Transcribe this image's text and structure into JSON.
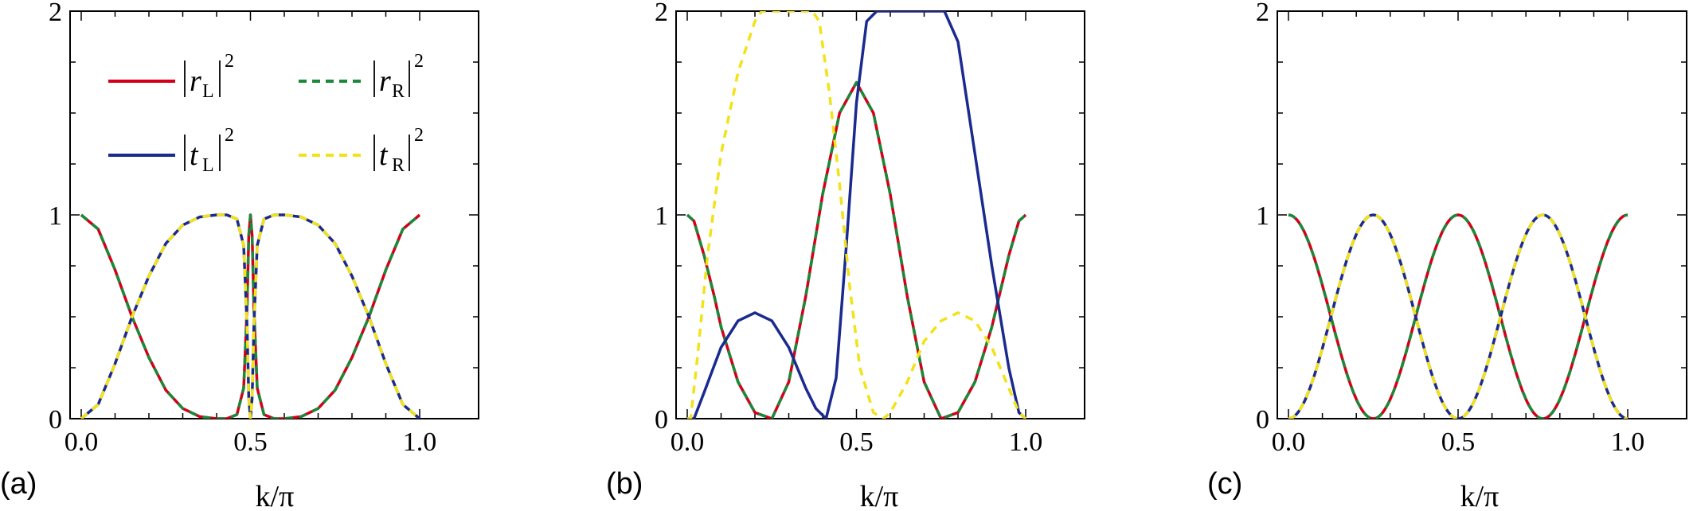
{
  "chart_data": [
    {
      "type": "line",
      "panel_label": "(a)",
      "xlabel": "k/π",
      "xlim": [
        0,
        1
      ],
      "ylim": [
        0,
        2
      ],
      "xticks": [
        "0.0",
        "0.5",
        "1.0"
      ],
      "yticks": [
        "0",
        "1",
        "2"
      ],
      "legend": [
        {
          "name": "|r_L|²",
          "base": "r",
          "sub": "L",
          "color": "#d4001a",
          "dash": "solid"
        },
        {
          "name": "|r_R|²",
          "base": "r",
          "sub": "R",
          "color": "#1a8a3a",
          "dash": "dashed"
        },
        {
          "name": "|t_L|²",
          "base": "t",
          "sub": "L",
          "color": "#1b2a8f",
          "dash": "solid"
        },
        {
          "name": "|t_R|²",
          "base": "t",
          "sub": "R",
          "color": "#f2e21a",
          "dash": "dashed"
        }
      ],
      "legend_position": "top-left",
      "series": [
        {
          "name": "|r_L|²",
          "color": "#d4001a",
          "dash": "solid",
          "x": [
            0.0,
            0.05,
            0.1,
            0.15,
            0.2,
            0.25,
            0.3,
            0.35,
            0.4,
            0.43,
            0.46,
            0.48,
            0.49,
            0.495,
            0.5,
            0.505,
            0.51,
            0.52,
            0.54,
            0.57,
            0.6,
            0.65,
            0.7,
            0.75,
            0.8,
            0.85,
            0.9,
            0.95,
            1.0
          ],
          "y": [
            1.0,
            0.93,
            0.73,
            0.5,
            0.3,
            0.14,
            0.05,
            0.01,
            0.0,
            0.0,
            0.02,
            0.15,
            0.55,
            0.9,
            1.0,
            0.9,
            0.55,
            0.15,
            0.02,
            0.0,
            0.0,
            0.01,
            0.05,
            0.14,
            0.3,
            0.5,
            0.73,
            0.93,
            1.0
          ]
        },
        {
          "name": "|r_R|²",
          "color": "#1a8a3a",
          "dash": "dashed",
          "x": [
            0.0,
            0.05,
            0.1,
            0.15,
            0.2,
            0.25,
            0.3,
            0.35,
            0.4,
            0.43,
            0.46,
            0.48,
            0.49,
            0.495,
            0.5,
            0.505,
            0.51,
            0.52,
            0.54,
            0.57,
            0.6,
            0.65,
            0.7,
            0.75,
            0.8,
            0.85,
            0.9,
            0.95,
            1.0
          ],
          "y": [
            1.0,
            0.93,
            0.73,
            0.5,
            0.3,
            0.14,
            0.05,
            0.01,
            0.0,
            0.0,
            0.02,
            0.15,
            0.55,
            0.9,
            1.0,
            0.9,
            0.55,
            0.15,
            0.02,
            0.0,
            0.0,
            0.01,
            0.05,
            0.14,
            0.3,
            0.5,
            0.73,
            0.93,
            1.0
          ]
        },
        {
          "name": "|t_L|²",
          "color": "#1b2a8f",
          "dash": "solid",
          "x": [
            0.0,
            0.05,
            0.1,
            0.15,
            0.2,
            0.25,
            0.3,
            0.35,
            0.4,
            0.43,
            0.46,
            0.48,
            0.49,
            0.495,
            0.5,
            0.505,
            0.51,
            0.52,
            0.54,
            0.57,
            0.6,
            0.65,
            0.7,
            0.75,
            0.8,
            0.85,
            0.9,
            0.95,
            1.0
          ],
          "y": [
            0.0,
            0.07,
            0.27,
            0.5,
            0.7,
            0.86,
            0.95,
            0.99,
            1.0,
            1.0,
            0.98,
            0.85,
            0.45,
            0.1,
            0.0,
            0.1,
            0.45,
            0.85,
            0.98,
            1.0,
            1.0,
            0.99,
            0.95,
            0.86,
            0.7,
            0.5,
            0.27,
            0.07,
            0.0
          ]
        },
        {
          "name": "|t_R|²",
          "color": "#f2e21a",
          "dash": "dashed",
          "x": [
            0.0,
            0.05,
            0.1,
            0.15,
            0.2,
            0.25,
            0.3,
            0.35,
            0.4,
            0.43,
            0.46,
            0.48,
            0.49,
            0.495,
            0.5,
            0.505,
            0.51,
            0.52,
            0.54,
            0.57,
            0.6,
            0.65,
            0.7,
            0.75,
            0.8,
            0.85,
            0.9,
            0.95,
            1.0
          ],
          "y": [
            0.0,
            0.07,
            0.27,
            0.5,
            0.7,
            0.86,
            0.95,
            0.99,
            1.0,
            1.0,
            0.98,
            0.85,
            0.45,
            0.1,
            0.0,
            0.1,
            0.45,
            0.85,
            0.98,
            1.0,
            1.0,
            0.99,
            0.95,
            0.86,
            0.7,
            0.5,
            0.27,
            0.07,
            0.0
          ]
        }
      ]
    },
    {
      "type": "line",
      "panel_label": "(b)",
      "xlabel": "k/π",
      "xlim": [
        0,
        1
      ],
      "ylim": [
        0,
        2
      ],
      "xticks": [
        "0.0",
        "0.5",
        "1.0"
      ],
      "yticks": [
        "0",
        "1",
        "2"
      ],
      "series": [
        {
          "name": "|r_L|²",
          "color": "#d4001a",
          "dash": "solid",
          "x": [
            0.0,
            0.02,
            0.05,
            0.08,
            0.1,
            0.15,
            0.2,
            0.25,
            0.3,
            0.35,
            0.4,
            0.45,
            0.5,
            0.55,
            0.6,
            0.65,
            0.7,
            0.75,
            0.8,
            0.85,
            0.9,
            0.95,
            0.98,
            1.0
          ],
          "y": [
            1.0,
            0.97,
            0.8,
            0.6,
            0.45,
            0.18,
            0.03,
            0.0,
            0.18,
            0.6,
            1.1,
            1.5,
            1.65,
            1.5,
            1.1,
            0.6,
            0.18,
            0.0,
            0.03,
            0.18,
            0.45,
            0.8,
            0.97,
            1.0
          ]
        },
        {
          "name": "|r_R|²",
          "color": "#1a8a3a",
          "dash": "dashed",
          "x": [
            0.0,
            0.02,
            0.05,
            0.08,
            0.1,
            0.15,
            0.2,
            0.25,
            0.3,
            0.35,
            0.4,
            0.45,
            0.5,
            0.55,
            0.6,
            0.65,
            0.7,
            0.75,
            0.8,
            0.85,
            0.9,
            0.95,
            0.98,
            1.0
          ],
          "y": [
            1.0,
            0.97,
            0.8,
            0.6,
            0.45,
            0.18,
            0.03,
            0.0,
            0.18,
            0.6,
            1.1,
            1.5,
            1.65,
            1.5,
            1.1,
            0.6,
            0.18,
            0.0,
            0.03,
            0.18,
            0.45,
            0.8,
            0.97,
            1.0
          ]
        },
        {
          "name": "|t_L|²",
          "color": "#1b2a8f",
          "dash": "solid",
          "x": [
            0.0,
            0.02,
            0.05,
            0.1,
            0.15,
            0.2,
            0.25,
            0.3,
            0.35,
            0.38,
            0.41,
            0.44,
            0.47,
            0.5,
            0.53,
            0.56,
            0.59,
            0.61,
            0.64,
            0.7,
            0.76,
            0.8,
            0.85,
            0.9,
            0.95,
            0.98,
            1.0
          ],
          "y": [
            0.0,
            0.0,
            0.13,
            0.35,
            0.48,
            0.52,
            0.48,
            0.35,
            0.15,
            0.05,
            0.0,
            0.2,
            0.85,
            1.55,
            1.95,
            2.0,
            2.0,
            2.0,
            2.0,
            2.0,
            2.0,
            1.85,
            1.3,
            0.75,
            0.25,
            0.03,
            0.0
          ]
        },
        {
          "name": "|t_R|²",
          "color": "#f2e21a",
          "dash": "dashed",
          "x": [
            0.0,
            0.01,
            0.03,
            0.06,
            0.1,
            0.15,
            0.2,
            0.22,
            0.24,
            0.3,
            0.37,
            0.39,
            0.42,
            0.45,
            0.48,
            0.51,
            0.55,
            0.58,
            0.6,
            0.65,
            0.7,
            0.75,
            0.8,
            0.85,
            0.9,
            0.95,
            0.98,
            1.0
          ],
          "y": [
            0.0,
            0.0,
            0.3,
            0.8,
            1.3,
            1.7,
            1.95,
            2.0,
            2.0,
            2.0,
            2.0,
            1.95,
            1.6,
            1.15,
            0.65,
            0.25,
            0.03,
            0.0,
            0.03,
            0.18,
            0.38,
            0.48,
            0.52,
            0.48,
            0.35,
            0.15,
            0.03,
            0.0
          ]
        }
      ]
    },
    {
      "type": "line",
      "panel_label": "(c)",
      "xlabel": "k/π",
      "xlim": [
        0,
        1
      ],
      "ylim": [
        0,
        2
      ],
      "xticks": [
        "0.0",
        "0.5",
        "1.0"
      ],
      "yticks": [
        "0",
        "1",
        "2"
      ],
      "series": [
        {
          "name": "|r_L|²",
          "color": "#d4001a",
          "dash": "solid",
          "formula": "cos2(2*pi*k)",
          "x": [],
          "y": []
        },
        {
          "name": "|r_R|²",
          "color": "#1a8a3a",
          "dash": "dashed",
          "formula": "cos2(2*pi*k)",
          "x": [],
          "y": []
        },
        {
          "name": "|t_L|²",
          "color": "#1b2a8f",
          "dash": "solid",
          "formula": "sin2(2*pi*k)",
          "x": [],
          "y": []
        },
        {
          "name": "|t_R|²",
          "color": "#f2e21a",
          "dash": "dashed",
          "formula": "sin2(2*pi*k)",
          "x": [],
          "y": []
        }
      ]
    }
  ]
}
